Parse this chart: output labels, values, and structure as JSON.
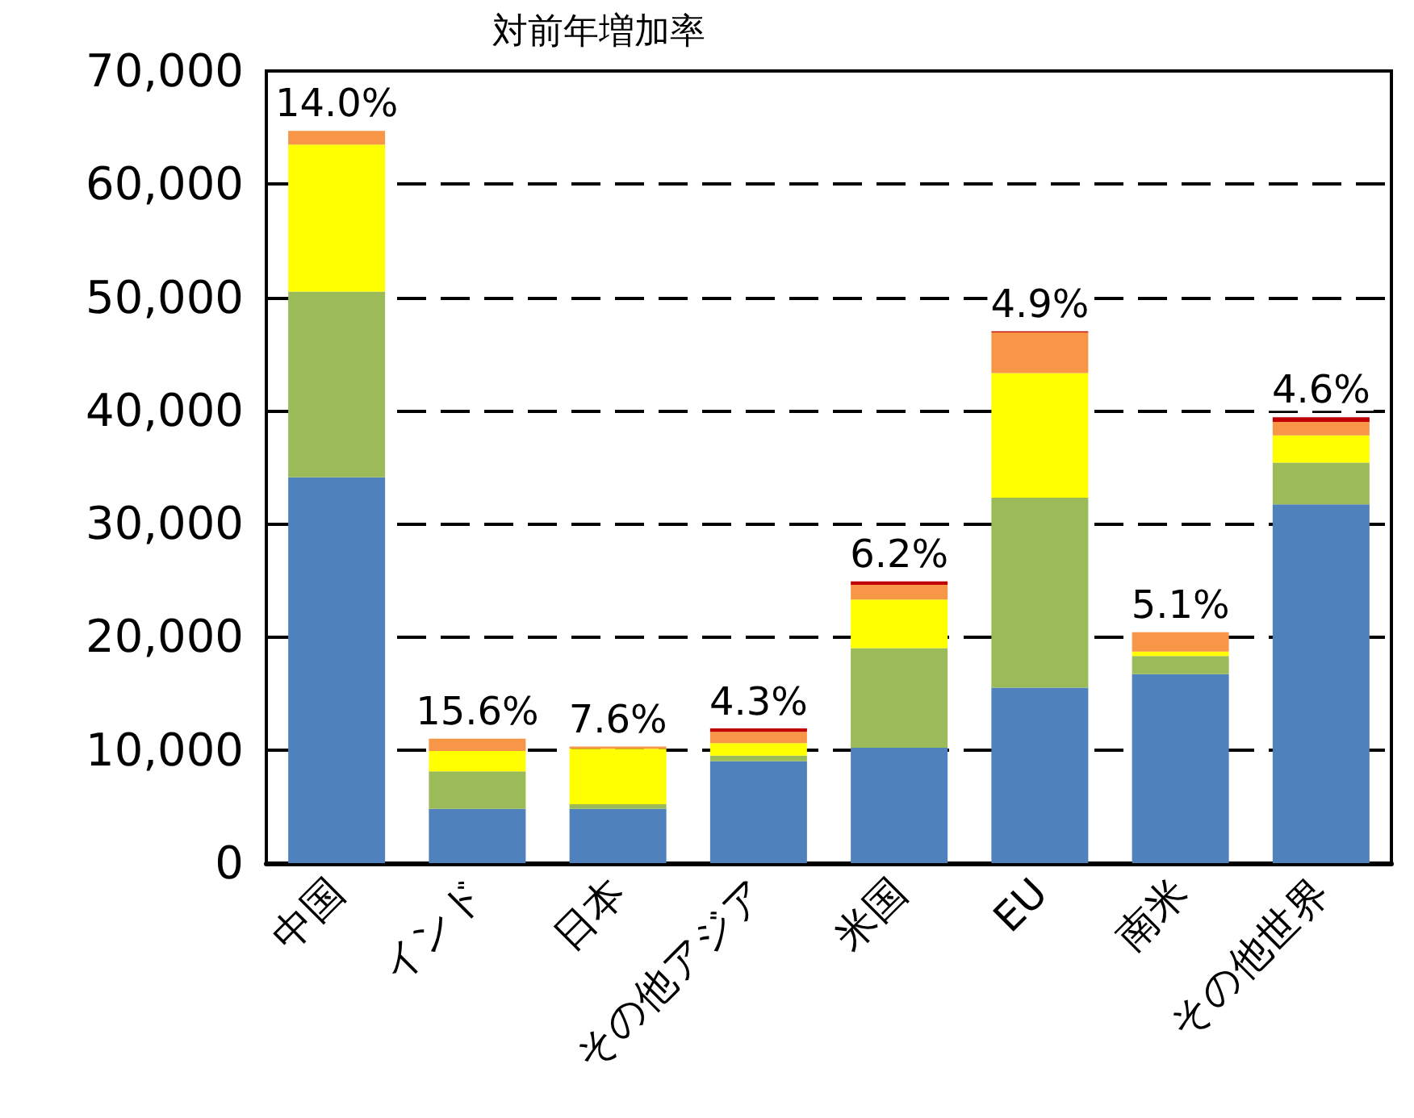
{
  "chart_data": {
    "type": "bar",
    "stacked": true,
    "title": "対前年増加率",
    "categories": [
      "中国",
      "インド",
      "日本",
      "その他アジア",
      "米国",
      "EU",
      "南米",
      "その他世界"
    ],
    "series": [
      {
        "color": "#4f81bd",
        "values": [
          34100,
          4800,
          4800,
          9000,
          10200,
          15500,
          16700,
          31700
        ]
      },
      {
        "color": "#9bbb59",
        "values": [
          16400,
          3300,
          400,
          500,
          8800,
          16800,
          1600,
          3700
        ]
      },
      {
        "color": "#ffff00",
        "values": [
          13000,
          1800,
          4900,
          1100,
          4300,
          11000,
          400,
          2400
        ]
      },
      {
        "color": "#f79646",
        "values": [
          1200,
          1100,
          200,
          1000,
          1300,
          3600,
          1700,
          1200
        ]
      },
      {
        "color": "#c00000",
        "values": [
          0,
          0,
          0,
          300,
          300,
          100,
          0,
          400
        ]
      }
    ],
    "annotations": [
      {
        "text": "14.0%",
        "x": "中国",
        "y": 64700
      },
      {
        "text": "15.6%",
        "x": "インド",
        "y": 11000
      },
      {
        "text": "7.6%",
        "x": "日本",
        "y": 10300
      },
      {
        "text": "4.3%",
        "x": "その他アジア",
        "y": 11800
      },
      {
        "text": "6.2%",
        "x": "米国",
        "y": 24900
      },
      {
        "text": "4.9%",
        "x": "EU",
        "y": 47000
      },
      {
        "text": "5.1%",
        "x": "南米",
        "y": 20400
      },
      {
        "text": "4.6%",
        "x": "その他世界",
        "y": 39400
      }
    ],
    "ylim": [
      0,
      70000
    ],
    "yticks": [
      0,
      {
        "value": 10000,
        "label": "10,000"
      },
      {
        "value": 20000,
        "label": "20,000"
      },
      {
        "value": 30000,
        "label": "30,000"
      },
      {
        "value": 40000,
        "label": "40,000"
      },
      {
        "value": 50000,
        "label": "50,000"
      },
      {
        "value": 60000,
        "label": "60,000"
      },
      {
        "value": 70000,
        "label": "70,000"
      }
    ],
    "grid": "y"
  }
}
